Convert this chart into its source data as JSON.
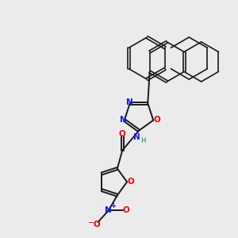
{
  "bg_color": "#ebebeb",
  "bond_color": "#1a1a1a",
  "N_color": "#1414ff",
  "O_color": "#ff0000",
  "H_color": "#008080",
  "figsize": [
    3.0,
    3.0
  ],
  "dpi": 100,
  "xlim": [
    0,
    10
  ],
  "ylim": [
    0,
    10
  ]
}
